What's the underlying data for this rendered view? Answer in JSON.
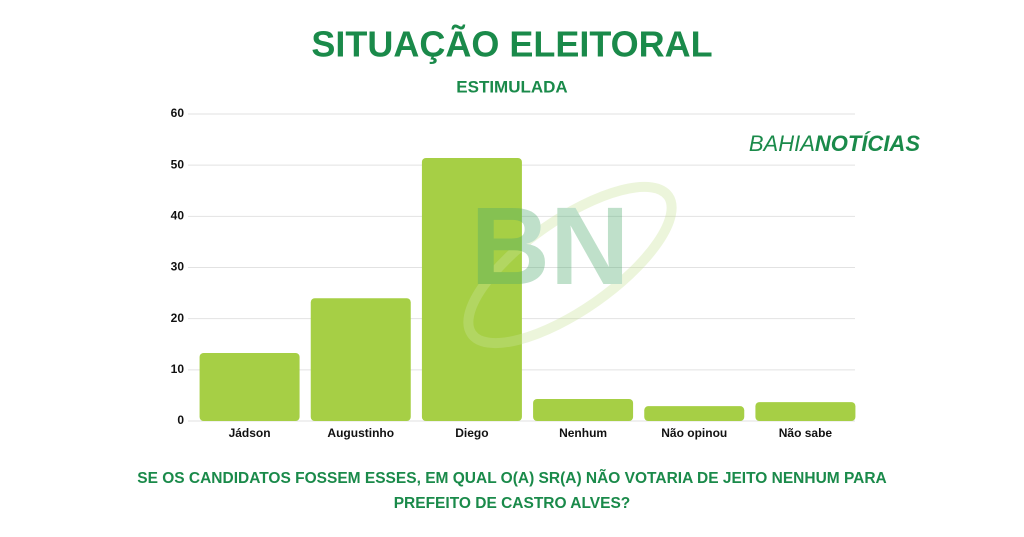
{
  "chart_data": {
    "type": "bar",
    "title": "SITUAÇÃO ELEITORAL",
    "subtitle": "ESTIMULADA",
    "brand": [
      "BAHIA",
      "NOTÍCIAS"
    ],
    "watermark": "BN",
    "categories": [
      "Jádson",
      "Augustinho",
      "Diego",
      "Nenhum",
      "Não opinou",
      "Não sabe"
    ],
    "values": [
      13.3,
      24,
      51.4,
      4.3,
      2.9,
      3.7
    ],
    "color": "#a6cf45",
    "ylim": [
      0,
      60
    ],
    "yticks": [
      0,
      10,
      20,
      30,
      40,
      50,
      60
    ],
    "grid": true,
    "footnote": "SE OS CANDIDATOS FOSSEM ESSES, EM QUAL O(A) SR(A) NÃO VOTARIA DE JEITO NENHUM PARA PREFEITO DE CASTRO ALVES?"
  }
}
